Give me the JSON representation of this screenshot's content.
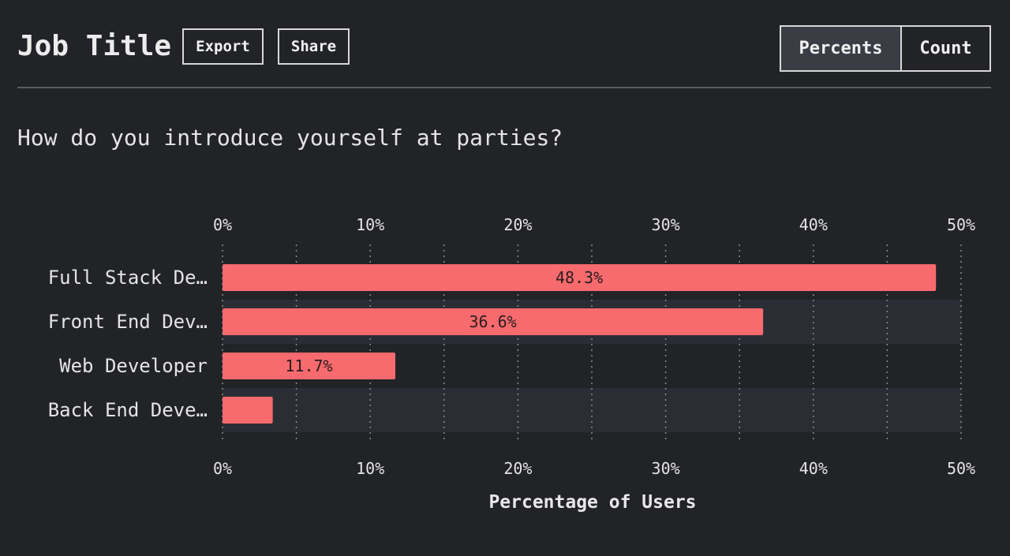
{
  "header": {
    "title": "Job Title",
    "export_label": "Export",
    "share_label": "Share",
    "toggle": {
      "options": [
        "Percents",
        "Count"
      ],
      "selected": "Percents"
    }
  },
  "question": "How do you introduce yourself at parties?",
  "colors": {
    "background": "#222327",
    "bar": "#f76a6e",
    "row_stripe": "#2b2d35"
  },
  "chart_data": {
    "type": "bar",
    "orientation": "horizontal",
    "categories": [
      "Full Stack De…",
      "Front End Dev…",
      "Web Developer",
      "Back End Deve…"
    ],
    "values": [
      48.3,
      36.6,
      11.7,
      3.4
    ],
    "data_labels": [
      "48.3%",
      "36.6%",
      "11.7%",
      ""
    ],
    "xlim": [
      0,
      50
    ],
    "x_ticks": [
      "0%",
      "10%",
      "20%",
      "30%",
      "40%",
      "50%"
    ],
    "xlabel": "Percentage of Users",
    "grid": true,
    "axis_position": "top and bottom"
  }
}
